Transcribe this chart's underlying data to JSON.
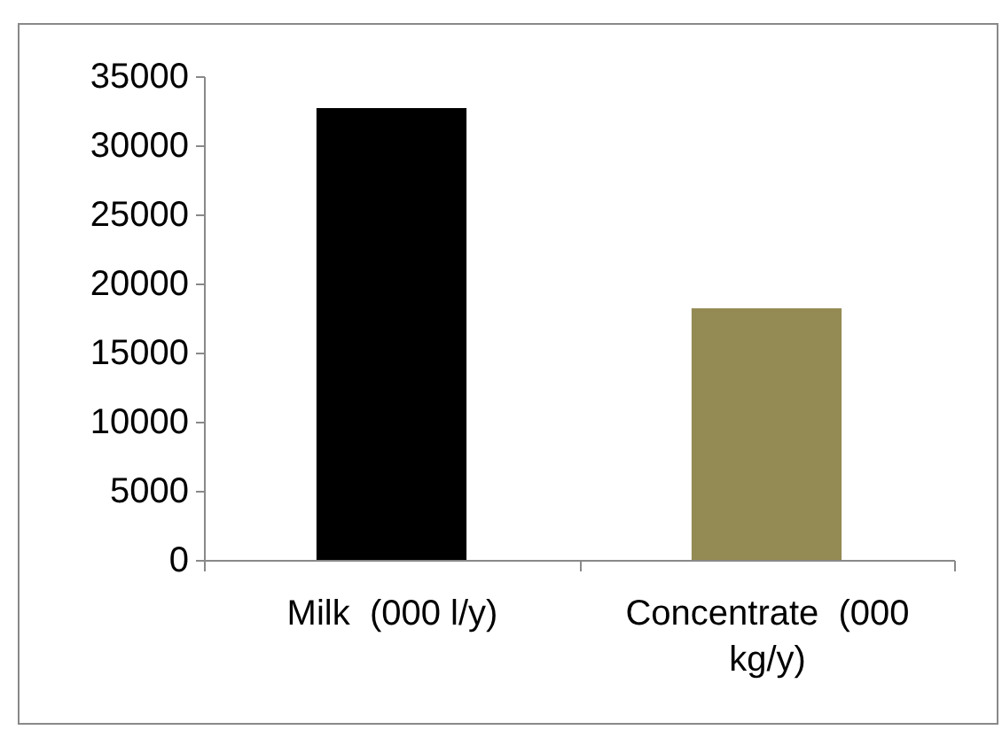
{
  "chart_data": {
    "type": "bar",
    "categories": [
      "Milk  (000 l/y)",
      "Concentrate  (000 kg/y)"
    ],
    "values": [
      32700,
      18200
    ],
    "colors": [
      "#000000",
      "#948a54"
    ],
    "ylim": [
      0,
      35000
    ],
    "yticks": [
      0,
      5000,
      10000,
      15000,
      20000,
      25000,
      30000,
      35000
    ],
    "grid": false,
    "legend": false
  }
}
